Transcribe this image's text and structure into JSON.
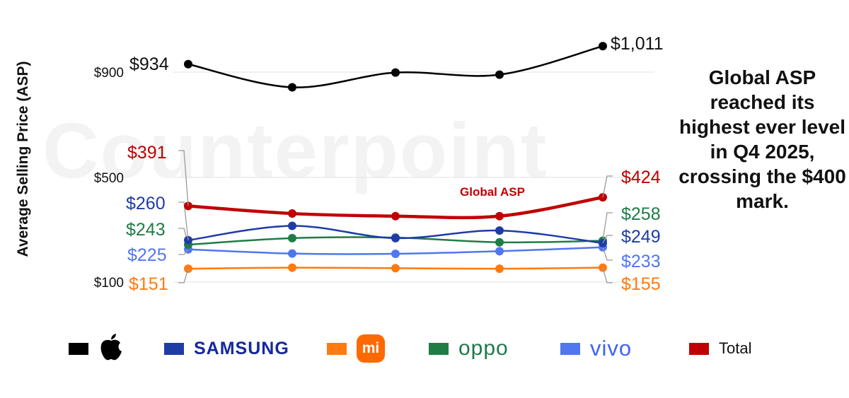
{
  "watermark": "Counterpoint",
  "callout": "Global ASP reached its highest ever level in Q4 2025, crossing the $400 mark.",
  "chart_data": {
    "type": "line",
    "ylabel": "Average Selling Price (ASP)",
    "ytick_labels": [
      "$900",
      "$500",
      "$100"
    ],
    "ytick_values": [
      900,
      500,
      100
    ],
    "grid": true,
    "series": [
      {
        "name": "Apple",
        "color": "#000000",
        "values": [
          934,
          835,
          898,
          889,
          1011
        ],
        "start_label": "$934",
        "end_label": "$1,011"
      },
      {
        "name": "Samsung",
        "color": "#1f3ca6",
        "values": [
          260,
          315,
          268,
          297,
          249
        ],
        "start_label": "$260",
        "end_label": "$249"
      },
      {
        "name": "Xiaomi",
        "color": "#ff7a0f",
        "values": [
          151,
          155,
          153,
          151,
          155
        ],
        "start_label": "$151",
        "end_label": "$155"
      },
      {
        "name": "OPPO",
        "color": "#1e7d45",
        "values": [
          243,
          268,
          270,
          252,
          258
        ],
        "start_label": "$243",
        "end_label": "$258"
      },
      {
        "name": "vivo",
        "color": "#5076f0",
        "values": [
          225,
          209,
          208,
          218,
          233
        ],
        "start_label": "$225",
        "end_label": "$233"
      },
      {
        "name": "Total",
        "color": "#c00000",
        "values": [
          391,
          362,
          352,
          352,
          424
        ],
        "start_label": "$391",
        "end_label": "$424",
        "annotation": "Global ASP"
      }
    ]
  },
  "legend": [
    {
      "name": "Apple",
      "color": "#000000"
    },
    {
      "name": "SAMSUNG",
      "color": "#1f3ca6"
    },
    {
      "name": "mi",
      "color": "#ff7a0f"
    },
    {
      "name": "oppo",
      "color": "#1e7d45"
    },
    {
      "name": "vivo",
      "color": "#5076f0"
    },
    {
      "name": "Total",
      "color": "#c00000"
    }
  ]
}
